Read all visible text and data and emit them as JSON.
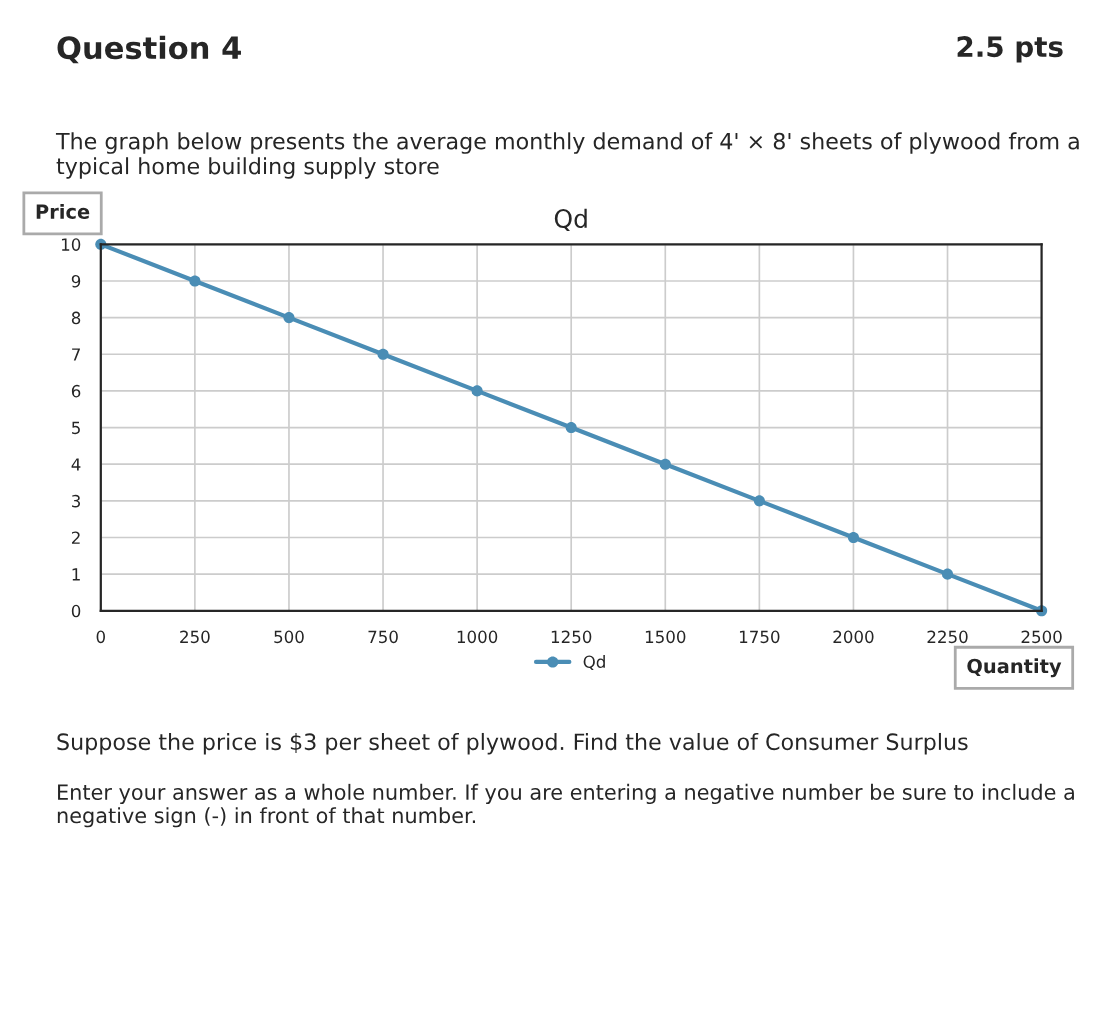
{
  "chart_data": {
    "type": "line",
    "title": "Qd",
    "xlabel": "Quantity",
    "ylabel": "Price",
    "x": [
      0,
      250,
      500,
      750,
      1000,
      1250,
      1500,
      1750,
      2000,
      2250,
      2500
    ],
    "series": [
      {
        "name": "Qd",
        "color": "#4a8db5",
        "values": [
          10,
          9,
          8,
          7,
          6,
          5,
          4,
          3,
          2,
          1,
          0
        ]
      }
    ],
    "xlim": [
      0,
      2500
    ],
    "ylim": [
      0,
      10
    ],
    "xticks": [
      0,
      250,
      500,
      750,
      1000,
      1250,
      1500,
      1750,
      2000,
      2250,
      2500
    ],
    "yticks": [
      0,
      1,
      2,
      3,
      4,
      5,
      6,
      7,
      8,
      9,
      10
    ],
    "grid": true,
    "legend": "bottom",
    "marker": "circle",
    "line_style": "solid",
    "annotations": [
      "Question 4",
      "2.5 pts",
      "The graph below presents the average monthly demand of 4' × 8' sheets of plywood from a typical home building supply store",
      "Suppose the price is $3 per sheet of plywood. Find the value of Consumer Surplus",
      "Enter your answer as a whole number. If you are entering a negative number be sure to include a negative sign (-) in front of that number."
    ]
  }
}
